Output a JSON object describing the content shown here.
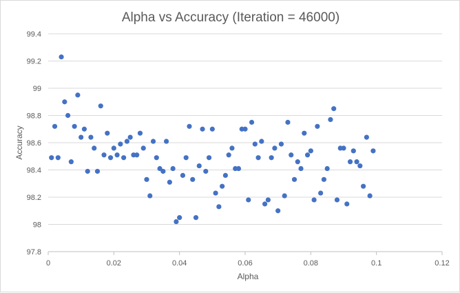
{
  "chart_data": {
    "type": "scatter",
    "title": "Alpha vs Accuracy (Iteration = 46000)",
    "xlabel": "Alpha",
    "ylabel": "Accuracy",
    "xlim": [
      0,
      0.12
    ],
    "ylim": [
      97.8,
      99.4
    ],
    "xticks": [
      "0",
      "0.02",
      "0.04",
      "0.06",
      "0.08",
      "0.1",
      "0.12"
    ],
    "yticks": [
      "97.8",
      "98",
      "98.2",
      "98.4",
      "98.6",
      "98.8",
      "99",
      "99.2",
      "99.4"
    ],
    "grid": "horizontal",
    "legend": "none",
    "color": "#4472c4",
    "series": [
      {
        "points": [
          [
            0.001,
            98.49
          ],
          [
            0.002,
            98.72
          ],
          [
            0.003,
            98.49
          ],
          [
            0.004,
            99.23
          ],
          [
            0.005,
            98.9
          ],
          [
            0.006,
            98.8
          ],
          [
            0.007,
            98.46
          ],
          [
            0.008,
            98.72
          ],
          [
            0.009,
            98.95
          ],
          [
            0.01,
            98.64
          ],
          [
            0.011,
            98.7
          ],
          [
            0.012,
            98.39
          ],
          [
            0.013,
            98.64
          ],
          [
            0.014,
            98.56
          ],
          [
            0.015,
            98.39
          ],
          [
            0.016,
            98.87
          ],
          [
            0.017,
            98.51
          ],
          [
            0.018,
            98.67
          ],
          [
            0.019,
            98.49
          ],
          [
            0.02,
            98.56
          ],
          [
            0.021,
            98.51
          ],
          [
            0.022,
            98.59
          ],
          [
            0.023,
            98.49
          ],
          [
            0.024,
            98.61
          ],
          [
            0.025,
            98.64
          ],
          [
            0.026,
            98.51
          ],
          [
            0.027,
            98.51
          ],
          [
            0.028,
            98.67
          ],
          [
            0.029,
            98.56
          ],
          [
            0.03,
            98.33
          ],
          [
            0.031,
            98.21
          ],
          [
            0.032,
            98.61
          ],
          [
            0.033,
            98.49
          ],
          [
            0.034,
            98.41
          ],
          [
            0.035,
            98.39
          ],
          [
            0.036,
            98.61
          ],
          [
            0.037,
            98.31
          ],
          [
            0.038,
            98.41
          ],
          [
            0.039,
            98.02
          ],
          [
            0.04,
            98.05
          ],
          [
            0.041,
            98.36
          ],
          [
            0.042,
            98.49
          ],
          [
            0.043,
            98.72
          ],
          [
            0.044,
            98.33
          ],
          [
            0.045,
            98.05
          ],
          [
            0.046,
            98.43
          ],
          [
            0.047,
            98.7
          ],
          [
            0.048,
            98.39
          ],
          [
            0.049,
            98.49
          ],
          [
            0.05,
            98.7
          ],
          [
            0.051,
            98.23
          ],
          [
            0.052,
            98.13
          ],
          [
            0.053,
            98.28
          ],
          [
            0.054,
            98.36
          ],
          [
            0.055,
            98.51
          ],
          [
            0.056,
            98.56
          ],
          [
            0.057,
            98.41
          ],
          [
            0.058,
            98.41
          ],
          [
            0.059,
            98.7
          ],
          [
            0.06,
            98.7
          ],
          [
            0.061,
            98.18
          ],
          [
            0.062,
            98.75
          ],
          [
            0.063,
            98.59
          ],
          [
            0.064,
            98.49
          ],
          [
            0.065,
            98.61
          ],
          [
            0.066,
            98.15
          ],
          [
            0.067,
            98.18
          ],
          [
            0.068,
            98.49
          ],
          [
            0.069,
            98.56
          ],
          [
            0.07,
            98.1
          ],
          [
            0.071,
            98.59
          ],
          [
            0.072,
            98.21
          ],
          [
            0.073,
            98.75
          ],
          [
            0.074,
            98.51
          ],
          [
            0.075,
            98.33
          ],
          [
            0.076,
            98.46
          ],
          [
            0.077,
            98.41
          ],
          [
            0.078,
            98.67
          ],
          [
            0.079,
            98.51
          ],
          [
            0.08,
            98.54
          ],
          [
            0.081,
            98.18
          ],
          [
            0.082,
            98.72
          ],
          [
            0.083,
            98.23
          ],
          [
            0.084,
            98.33
          ],
          [
            0.085,
            98.41
          ],
          [
            0.086,
            98.77
          ],
          [
            0.087,
            98.85
          ],
          [
            0.088,
            98.18
          ],
          [
            0.089,
            98.56
          ],
          [
            0.09,
            98.56
          ],
          [
            0.091,
            98.15
          ],
          [
            0.092,
            98.46
          ],
          [
            0.093,
            98.54
          ],
          [
            0.094,
            98.46
          ],
          [
            0.095,
            98.43
          ],
          [
            0.096,
            98.28
          ],
          [
            0.097,
            98.64
          ],
          [
            0.098,
            98.21
          ],
          [
            0.099,
            98.54
          ]
        ]
      }
    ]
  }
}
